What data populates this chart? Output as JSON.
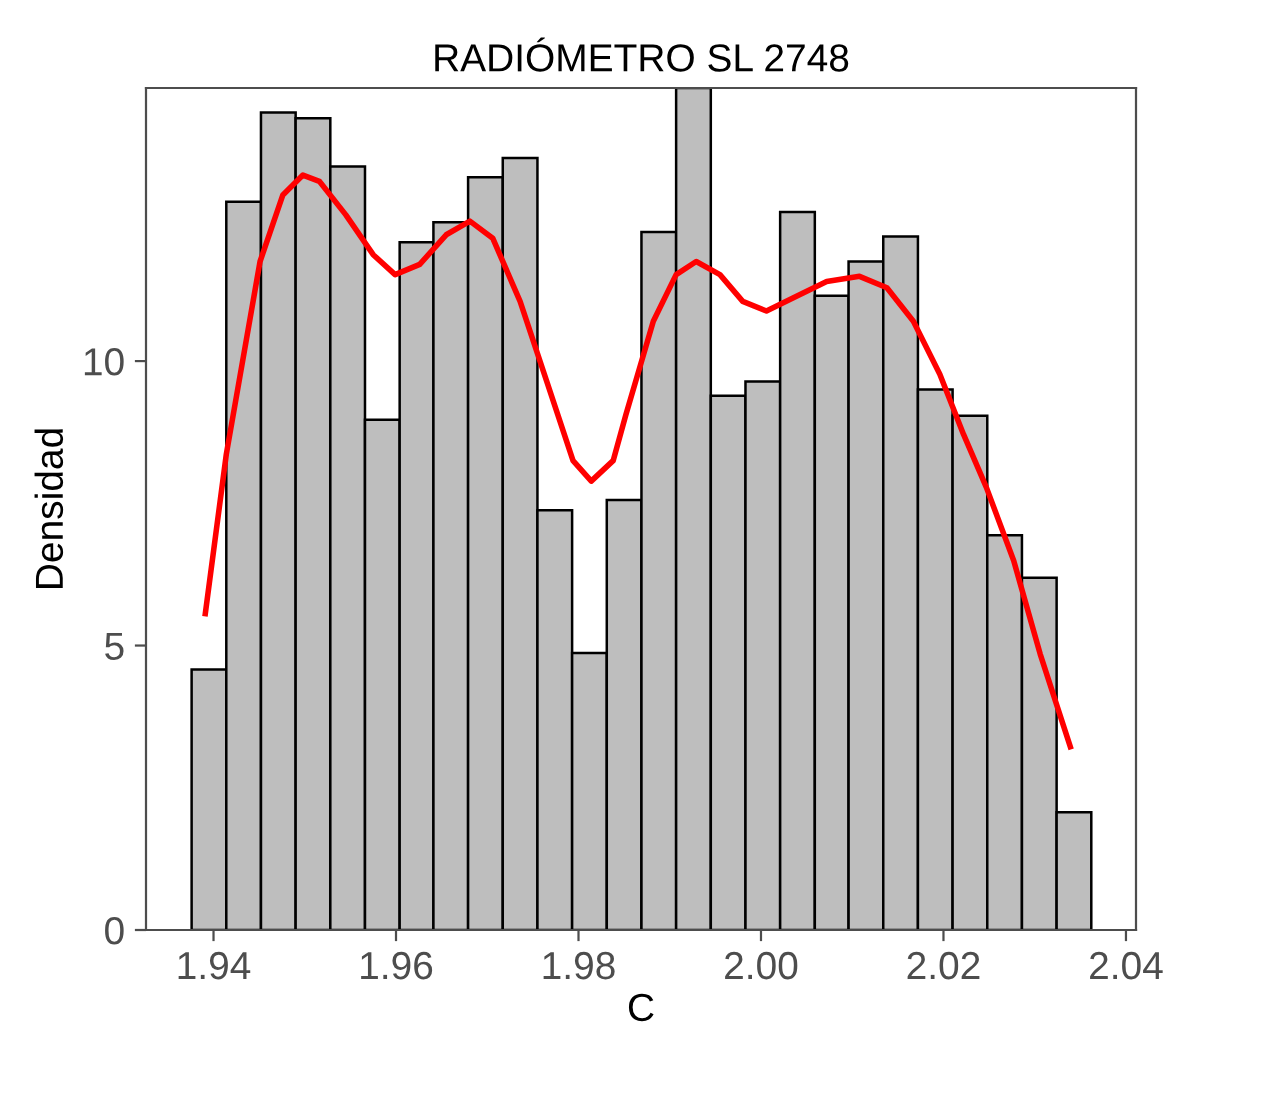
{
  "chart_data": {
    "type": "histogram",
    "title": "RADIÓMETRO SL 2748",
    "xlabel": "C",
    "ylabel": "Densidad",
    "bins": [
      1.9376,
      1.9414,
      1.9452,
      1.949,
      1.9528,
      1.9566,
      1.9604,
      1.9641,
      1.9679,
      1.9717,
      1.9755,
      1.9793,
      1.9831,
      1.9869,
      1.9907,
      1.9945,
      1.9983,
      2.0021,
      2.0059,
      2.0096,
      2.0134,
      2.0172,
      2.021,
      2.0248,
      2.0286,
      2.0324,
      2.0362
    ],
    "values": [
      4.58,
      12.8,
      14.37,
      14.27,
      13.42,
      8.97,
      12.09,
      12.44,
      13.23,
      13.57,
      7.38,
      4.87,
      7.56,
      12.27,
      14.8,
      9.39,
      9.64,
      12.62,
      11.15,
      11.75,
      12.19,
      9.5,
      9.04,
      6.94,
      6.19,
      2.07
    ],
    "color": "#bebebe",
    "series": [
      {
        "type": "line",
        "color": "#ff0000",
        "x": [
          1.9391,
          1.9414,
          1.9451,
          1.9476,
          1.9498,
          1.9516,
          1.9545,
          1.9575,
          1.9599,
          1.9626,
          1.9655,
          1.9681,
          1.9706,
          1.9736,
          1.9765,
          1.9794,
          1.9814,
          1.9838,
          1.9852,
          1.9882,
          1.9907,
          1.9929,
          1.9955,
          1.998,
          2.0006,
          2.0035,
          2.0072,
          2.0108,
          2.0138,
          2.0167,
          2.0196,
          2.0222,
          2.0247,
          2.0277,
          2.0306,
          2.0339
        ],
        "values": [
          5.56,
          8.36,
          11.75,
          12.92,
          13.27,
          13.16,
          12.57,
          11.87,
          11.52,
          11.7,
          12.22,
          12.46,
          12.16,
          11.05,
          9.65,
          8.25,
          7.89,
          8.25,
          9.06,
          10.7,
          11.52,
          11.75,
          11.52,
          11.05,
          10.88,
          11.11,
          11.4,
          11.49,
          11.29,
          10.7,
          9.77,
          8.71,
          7.78,
          6.49,
          4.85,
          3.22
        ]
      }
    ],
    "xlim": [
      1.9326,
      2.0411
    ],
    "ylim": [
      0,
      14.8
    ],
    "xticks": [
      1.94,
      1.96,
      1.98,
      {
        "value": 2.0,
        "label": "2.00"
      },
      2.02,
      2.04
    ],
    "yticks": [
      0,
      5,
      10
    ],
    "grid": false,
    "legend": false
  }
}
